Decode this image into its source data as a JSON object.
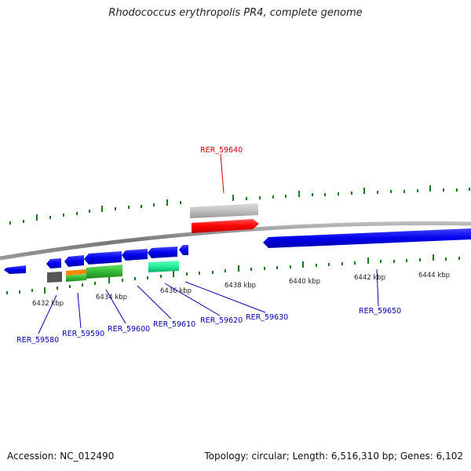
{
  "title": "Rhodococcus erythropolis PR4, complete genome",
  "footer": {
    "accession": "Accession: NC_012490",
    "summary": "Topology: circular; Length: 6,516,310 bp; Genes: 6,102"
  },
  "scale_labels": [
    "6432 kbp",
    "6434 kbp",
    "6436 kbp",
    "6438 kbp",
    "6440 kbp",
    "6442 kbp",
    "6444 kbp"
  ],
  "gene_labels": [
    {
      "text": "RER_59640",
      "color": "#cc0000"
    },
    {
      "text": "RER_59580",
      "color": "#0000aa"
    },
    {
      "text": "RER_59590",
      "color": "#0000aa"
    },
    {
      "text": "RER_59600",
      "color": "#0000aa"
    },
    {
      "text": "RER_59610",
      "color": "#0000aa"
    },
    {
      "text": "RER_59620",
      "color": "#0000aa"
    },
    {
      "text": "RER_59630",
      "color": "#0000aa"
    },
    {
      "text": "RER_59650",
      "color": "#0000aa"
    }
  ],
  "colors": {
    "backbone": "#808080",
    "tick": "#1a7a1a",
    "gene_forward_red": "#ff0000",
    "gene_grey": "#c0c0c0",
    "gene_reverse": "#0000ff",
    "gene_green": "#33bb33",
    "gene_orange": "#ff8800",
    "gene_teal": "#22ee99",
    "gene_dark": "#555555"
  }
}
